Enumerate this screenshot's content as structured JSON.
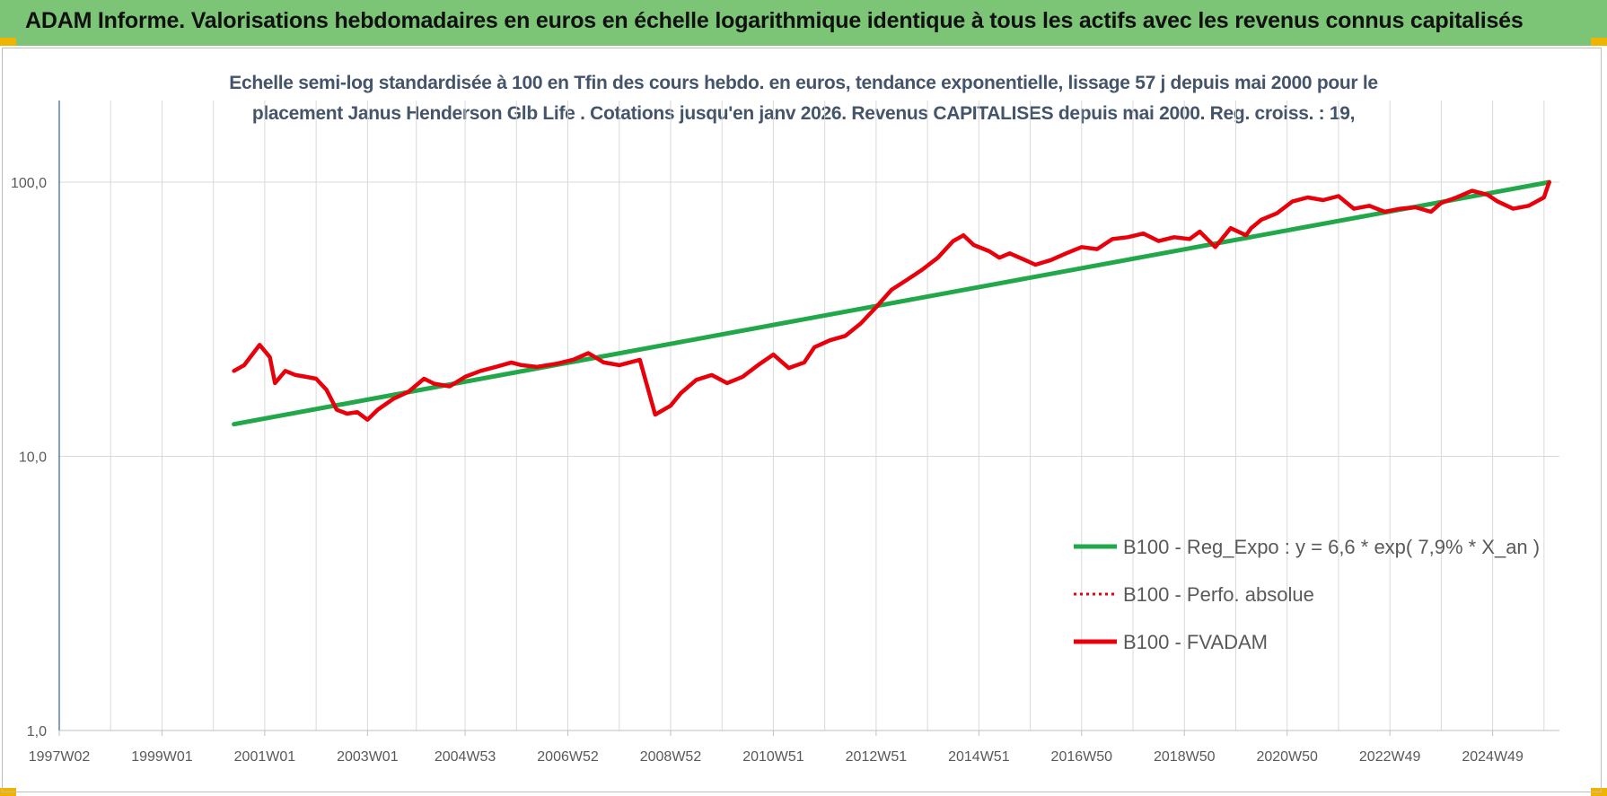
{
  "header": {
    "title": "ADAM Informe. Valorisations hebdomadaires en euros en échelle logarithmique identique à tous les actifs avec les revenus connus capitalisés"
  },
  "colors": {
    "banner": "#7cc576",
    "corner": "#f0b400",
    "trend": "#22a84a",
    "series": "#e8000a",
    "grid": "#d9d9d9",
    "axis": "#2e5f9c"
  },
  "chart_data": {
    "type": "line",
    "title": "Echelle semi-log standardisée à 100 en Tfin des cours hebdo. en euros, tendance exponentielle, lissage 57 j depuis mai 2000 pour le",
    "subtitle": "placement Janus Henderson Glb Life . Cotations jusqu'en janv 2026. Revenus CAPITALISES depuis mai 2000. Reg. croiss. : 19,",
    "y_scale": "log",
    "ylim": [
      1,
      200
    ],
    "y_ticks": [
      1,
      10,
      100
    ],
    "y_tick_labels": [
      "1,0",
      "10,0",
      "100,0"
    ],
    "xlim": [
      1997.0,
      2026.2
    ],
    "x_ticks": [
      1997.0,
      1999.0,
      2001.0,
      2003.0,
      2004.9,
      2006.9,
      2008.9,
      2010.9,
      2012.9,
      2014.9,
      2016.9,
      2018.9,
      2020.9,
      2022.9,
      2024.9
    ],
    "x_tick_labels": [
      "1997W02",
      "1999W01",
      "2001W01",
      "2003W01",
      "2004W53",
      "2006W52",
      "2008W52",
      "2010W51",
      "2012W51",
      "2014W51",
      "2016W50",
      "2018W50",
      "2020W50",
      "2022W49",
      "2024W49"
    ],
    "grid": true,
    "legend_position": "bottom-right",
    "legend": [
      {
        "label": "B100 - Reg_Expo : y = 6,6 * exp( 7,9% *  X_an )",
        "style": "solid-green"
      },
      {
        "label": "B100 - Perfo. absolue",
        "style": "dotted-red"
      },
      {
        "label": "B100 - FVADAM",
        "style": "solid-red"
      }
    ],
    "series": [
      {
        "name": "B100 - Reg_Expo : y = 6,6 * exp( 7,9% *  X_an )",
        "color": "#22a84a",
        "x": [
          2000.4,
          2026.0
        ],
        "y": [
          13.1,
          100.0
        ]
      },
      {
        "name": "B100 - FVADAM",
        "color": "#e8000a",
        "x": [
          2000.4,
          2000.6,
          2000.9,
          2001.1,
          2001.2,
          2001.4,
          2001.6,
          2001.8,
          2002.0,
          2002.2,
          2002.4,
          2002.6,
          2002.8,
          2003.0,
          2003.2,
          2003.5,
          2003.8,
          2004.1,
          2004.3,
          2004.6,
          2004.9,
          2005.2,
          2005.5,
          2005.8,
          2006.0,
          2006.3,
          2006.7,
          2007.0,
          2007.3,
          2007.6,
          2007.9,
          2008.3,
          2008.6,
          2008.9,
          2009.1,
          2009.4,
          2009.7,
          2010.0,
          2010.3,
          2010.6,
          2010.9,
          2011.2,
          2011.5,
          2011.7,
          2012.0,
          2012.3,
          2012.6,
          2012.9,
          2013.2,
          2013.5,
          2013.8,
          2014.1,
          2014.4,
          2014.6,
          2014.8,
          2015.1,
          2015.3,
          2015.5,
          2015.8,
          2016.0,
          2016.3,
          2016.6,
          2016.9,
          2017.2,
          2017.5,
          2017.8,
          2018.1,
          2018.4,
          2018.7,
          2019.0,
          2019.2,
          2019.5,
          2019.8,
          2020.1,
          2020.2,
          2020.4,
          2020.7,
          2021.0,
          2021.3,
          2021.6,
          2021.9,
          2022.2,
          2022.5,
          2022.8,
          2023.1,
          2023.4,
          2023.7,
          2023.9,
          2024.2,
          2024.5,
          2024.8,
          2025.0,
          2025.3,
          2025.6,
          2025.9,
          2026.0
        ],
        "y": [
          20.5,
          21.5,
          25.5,
          23.0,
          18.5,
          20.5,
          19.8,
          19.5,
          19.2,
          17.5,
          14.8,
          14.3,
          14.5,
          13.6,
          14.8,
          16.2,
          17.2,
          19.2,
          18.4,
          18.0,
          19.5,
          20.5,
          21.2,
          22.0,
          21.5,
          21.2,
          21.8,
          22.5,
          23.8,
          22.0,
          21.5,
          22.5,
          14.2,
          15.3,
          17.0,
          19.0,
          19.8,
          18.5,
          19.5,
          21.5,
          23.5,
          21.0,
          22.0,
          25.0,
          26.5,
          27.5,
          30.5,
          35.0,
          40.5,
          44.0,
          48.0,
          53.0,
          61.0,
          64.0,
          59.0,
          56.0,
          53.0,
          55.0,
          52.0,
          50.0,
          52.0,
          55.0,
          58.0,
          57.0,
          62.0,
          63.0,
          65.0,
          61.0,
          63.0,
          62.0,
          66.0,
          58.0,
          68.0,
          64.0,
          68.0,
          73.0,
          77.0,
          85.0,
          88.0,
          86.0,
          89.0,
          80.0,
          82.0,
          78.0,
          80.0,
          81.0,
          78.0,
          84.0,
          88.0,
          93.0,
          90.0,
          85.0,
          80.0,
          82.0,
          88.0,
          100.0
        ]
      }
    ]
  }
}
